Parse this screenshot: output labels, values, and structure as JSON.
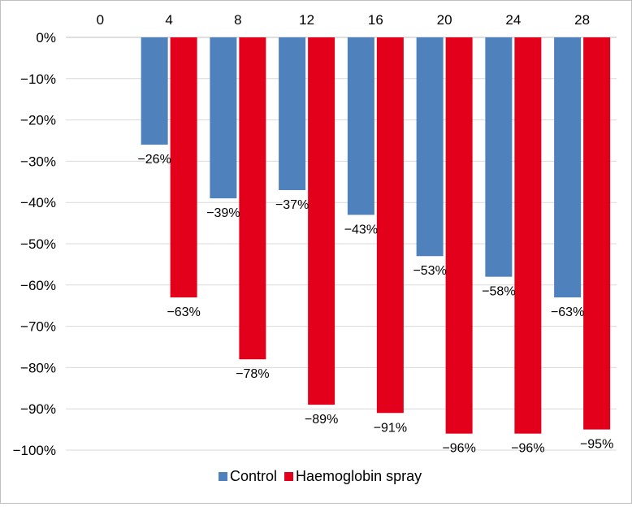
{
  "chart_data": {
    "type": "bar",
    "categories": [
      "0",
      "4",
      "8",
      "12",
      "16",
      "20",
      "24",
      "28"
    ],
    "series": [
      {
        "name": "Control",
        "color": "#4f81bd",
        "values": [
          null,
          -26,
          -39,
          -37,
          -43,
          -53,
          -58,
          -63
        ],
        "labels": [
          "",
          "−26%",
          "−39%",
          "−37%",
          "−43%",
          "−53%",
          "−58%",
          "−63%"
        ]
      },
      {
        "name": "Haemoglobin spray",
        "color": "#e2001a",
        "values": [
          null,
          -63,
          -78,
          -89,
          -91,
          -96,
          -96,
          -95
        ],
        "labels": [
          "",
          "−63%",
          "−78%",
          "−89%",
          "−91%",
          "−96%",
          "−96%",
          "−95%"
        ]
      }
    ],
    "y_ticks": [
      0,
      -10,
      -20,
      -30,
      -40,
      -50,
      -60,
      -70,
      -80,
      -90,
      -100
    ],
    "y_tick_labels": [
      "0%",
      "−10%",
      "−20%",
      "−30%",
      "−40%",
      "−50%",
      "−60%",
      "−70%",
      "−80%",
      "−90%",
      "−100%"
    ],
    "ylim": [
      -100,
      0
    ],
    "x_axis_position": "top",
    "grid": true,
    "legend_position": "bottom-center",
    "title": "",
    "xlabel": "",
    "ylabel": ""
  }
}
